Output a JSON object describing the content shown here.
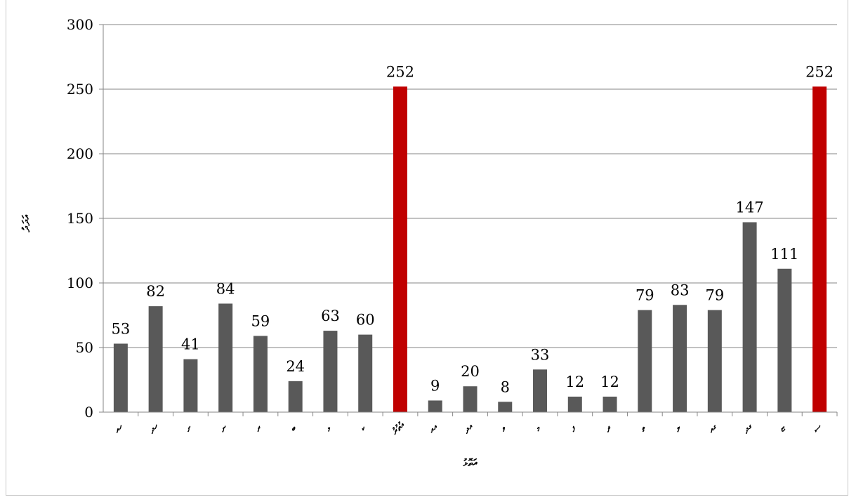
{
  "chart_data": {
    "type": "bar",
    "title": "",
    "xlabel": "އަތޮޅު",
    "ylabel": "އަދަދު",
    "categories": [
      "ހއ",
      "ހދ",
      "ށ",
      "ނ",
      "ރ",
      "ބ",
      "ޅ",
      "ކ",
      "އުތުރު",
      "އއ",
      "އދ",
      "ވ",
      "މ",
      "ފ",
      "ދ",
      "ތ",
      "ލ",
      "ގއ",
      "ގދ",
      "ޏ",
      "ސ"
    ],
    "values": [
      53,
      82,
      41,
      84,
      59,
      24,
      63,
      60,
      252,
      9,
      20,
      8,
      33,
      12,
      12,
      79,
      83,
      79,
      147,
      111,
      252
    ],
    "highlight_indices": [
      8,
      20
    ],
    "ylim": [
      0,
      300
    ],
    "yticks": [
      0,
      50,
      100,
      150,
      200,
      250,
      300
    ],
    "grid": true,
    "colors": {
      "bar": "#595959",
      "highlight": "#c00000",
      "grid": "#868686",
      "axis": "#868686"
    }
  }
}
